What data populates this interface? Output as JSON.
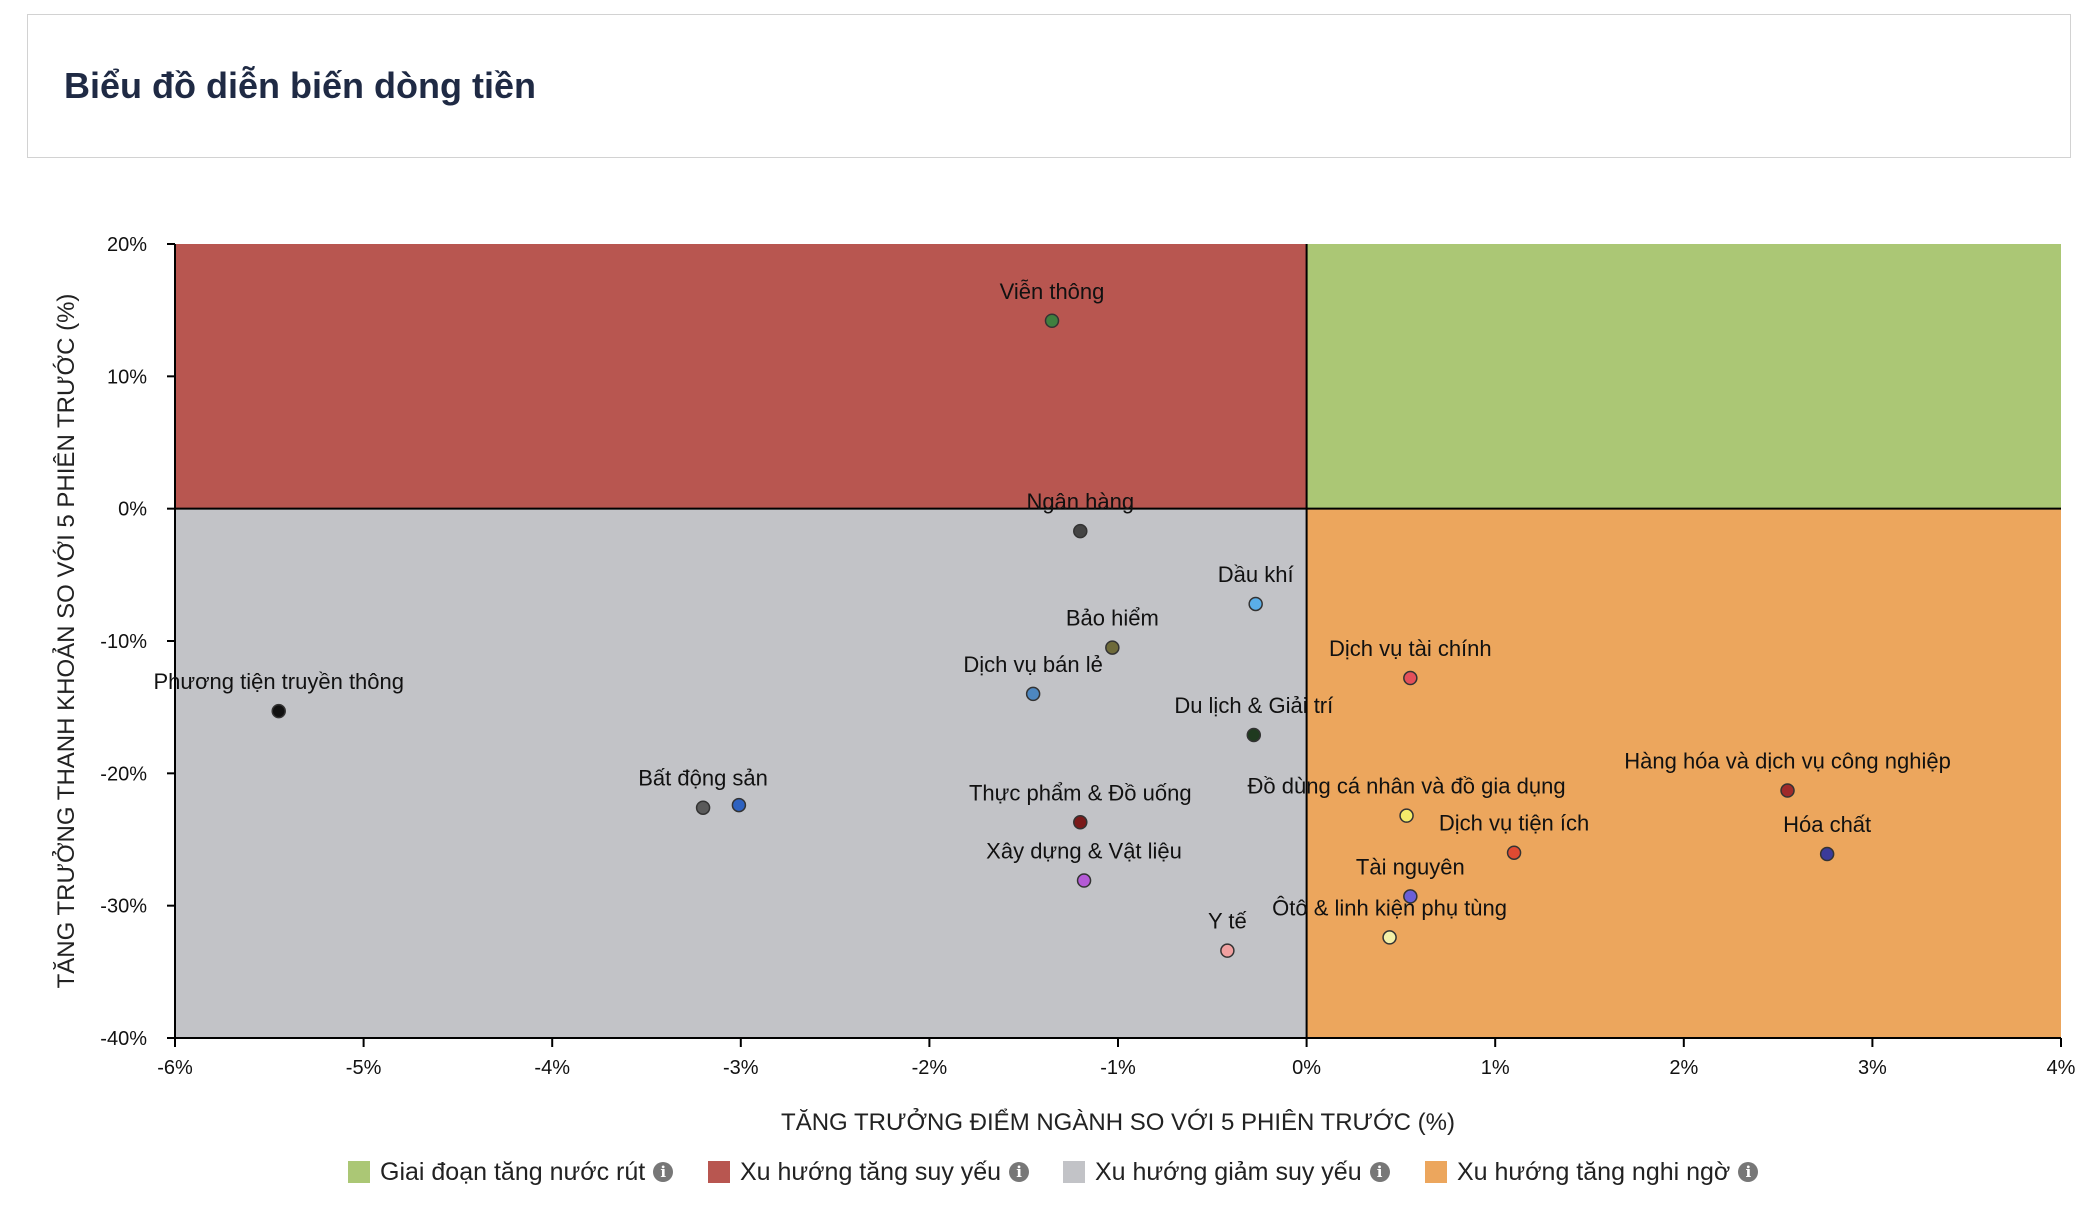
{
  "page": {
    "title": "Biểu đồ diễn biến dòng tiền"
  },
  "chart_data": {
    "type": "scatter",
    "xlabel": "TĂNG TRƯỞNG ĐIỂM NGÀNH SO VỚI 5 PHIÊN TRƯỚC (%)",
    "ylabel": "TĂNG TRƯỞNG THANH KHOẢN SO VỚI 5 PHIÊN TRƯỚC (%)",
    "xlim": [
      -6,
      4
    ],
    "ylim": [
      -40,
      20
    ],
    "x_ticks": [
      -6,
      -5,
      -4,
      -3,
      -2,
      -1,
      0,
      1,
      2,
      3,
      4
    ],
    "y_ticks": [
      20,
      10,
      0,
      -10,
      -20,
      -30,
      -40
    ],
    "x_tick_labels": [
      "-6%",
      "-5%",
      "-4%",
      "-3%",
      "-2%",
      "-1%",
      "0%",
      "1%",
      "2%",
      "3%",
      "4%"
    ],
    "y_tick_labels": [
      "20%",
      "10%",
      "0%",
      "-10%",
      "-20%",
      "-30%",
      "-40%"
    ],
    "quadrants": [
      {
        "name": "Giai đoạn tăng nước rút",
        "color": "#abc775",
        "x": [
          0,
          4
        ],
        "y": [
          0,
          20
        ]
      },
      {
        "name": "Xu hướng tăng suy yếu",
        "color": "#b85650",
        "x": [
          -6,
          0
        ],
        "y": [
          0,
          20
        ]
      },
      {
        "name": "Xu hướng giảm suy yếu",
        "color": "#c2c3c7",
        "x": [
          -6,
          0
        ],
        "y": [
          -40,
          0
        ]
      },
      {
        "name": "Xu hướng tăng nghi ngờ",
        "color": "#eca65d",
        "x": [
          0,
          4
        ],
        "y": [
          -40,
          0
        ]
      }
    ],
    "points": [
      {
        "label": "Viễn thông",
        "x": -1.35,
        "y": 14.2,
        "color": "#3f7f3f"
      },
      {
        "label": "Ngân hàng",
        "x": -1.2,
        "y": -1.7,
        "color": "#444444"
      },
      {
        "label": "Dầu khí",
        "x": -0.27,
        "y": -7.2,
        "color": "#5aaee8"
      },
      {
        "label": "Bảo hiểm",
        "x": -1.03,
        "y": -10.5,
        "color": "#6e6a3a"
      },
      {
        "label": "Dịch vụ tài chính",
        "x": 0.55,
        "y": -12.8,
        "color": "#e4505a"
      },
      {
        "label": "Dịch vụ bán lẻ",
        "x": -1.45,
        "y": -14.0,
        "color": "#4d87c0"
      },
      {
        "label": "Phương tiện truyền thông",
        "x": -5.45,
        "y": -15.3,
        "color": "#111111"
      },
      {
        "label": "Du lịch & Giải trí",
        "x": -0.28,
        "y": -17.1,
        "color": "#1f3a1f"
      },
      {
        "label": "Hàng hóa và dịch vụ công nghiệp",
        "x": 2.55,
        "y": -21.3,
        "color": "#a02a2a"
      },
      {
        "label": "Bất động sản",
        "x": -3.2,
        "y": -22.6,
        "color": "#5a5a5a"
      },
      {
        "label": "",
        "x": -3.01,
        "y": -22.4,
        "color": "#2e62c0"
      },
      {
        "label": "Thực phẩm & Đồ uống",
        "x": -1.2,
        "y": -23.7,
        "color": "#7a1a1a"
      },
      {
        "label": "Đồ dùng cá nhân và đồ gia dụng",
        "x": 0.53,
        "y": -23.2,
        "color": "#f5ec6a"
      },
      {
        "label": "Dịch vụ tiện ích",
        "x": 1.1,
        "y": -26.0,
        "color": "#e04a32"
      },
      {
        "label": "Hóa chất",
        "x": 2.76,
        "y": -26.1,
        "color": "#3b3b9a"
      },
      {
        "label": "Xây dựng & Vật liệu",
        "x": -1.18,
        "y": -28.1,
        "color": "#b45ad6"
      },
      {
        "label": "Tài nguyên",
        "x": 0.55,
        "y": -29.3,
        "color": "#6b5fd6"
      },
      {
        "label": "Ôtô & linh kiện phụ tùng",
        "x": 0.44,
        "y": -32.4,
        "color": "#f3f0a8"
      },
      {
        "label": "Y tế",
        "x": -0.42,
        "y": -33.4,
        "color": "#f0a0a0"
      }
    ]
  },
  "legend": {
    "items": [
      {
        "label": "Giai đoạn tăng nước rút",
        "color": "#abc775",
        "icon": "info-icon"
      },
      {
        "label": "Xu hướng tăng suy yếu",
        "color": "#b85650",
        "icon": "info-icon"
      },
      {
        "label": "Xu hướng giảm suy yếu",
        "color": "#c2c3c7",
        "icon": "info-icon"
      },
      {
        "label": "Xu hướng tăng nghi ngờ",
        "color": "#eca65d",
        "icon": "info-icon"
      }
    ]
  }
}
